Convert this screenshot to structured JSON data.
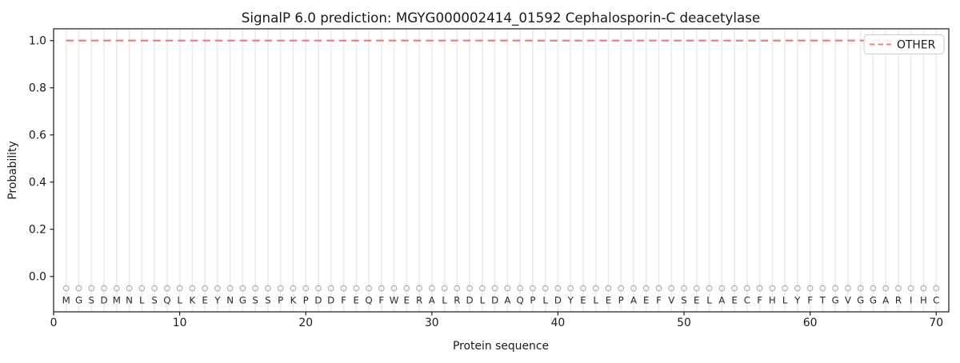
{
  "chart_data": {
    "type": "line",
    "title": "SignalP 6.0 prediction: MGYG000002414_01592 Cephalosporin-C deacetylase",
    "xlabel": "Protein sequence",
    "ylabel": "Probability",
    "xlim": [
      0,
      71
    ],
    "ylim": [
      -0.15,
      1.05
    ],
    "x_ticks": [
      0,
      10,
      20,
      30,
      40,
      50,
      60,
      70
    ],
    "y_ticks": [
      0.0,
      0.2,
      0.4,
      0.6,
      0.8,
      1.0
    ],
    "grid": {
      "vertical_per_residue": true,
      "horizontal": false
    },
    "legend": {
      "position": "upper-right",
      "entries": [
        {
          "label": "OTHER",
          "color": "#f08080",
          "linestyle": "dashed"
        }
      ]
    },
    "sequence": "MGSDMNLSQLKEYNGSSPKPDDFEQFWERALRDLDAQPLDYELEPAEFVSELAECFHLYFTGVGGARIHC",
    "series": [
      {
        "name": "OTHER",
        "color": "#f08080",
        "linestyle": "dashed",
        "x_start": 1,
        "x_end": 70,
        "constant_value": 1.0
      }
    ],
    "residue_markers": {
      "shape": "open-circle",
      "y_value": -0.05,
      "color": "#ababab"
    },
    "colors": {
      "axis": "#1a1a1a",
      "letters": "#2b2b2b",
      "grid": "#ededed",
      "marker": "#ababab",
      "line": "#f08080",
      "legend_border": "#cccccc",
      "background": "#ffffff"
    }
  }
}
